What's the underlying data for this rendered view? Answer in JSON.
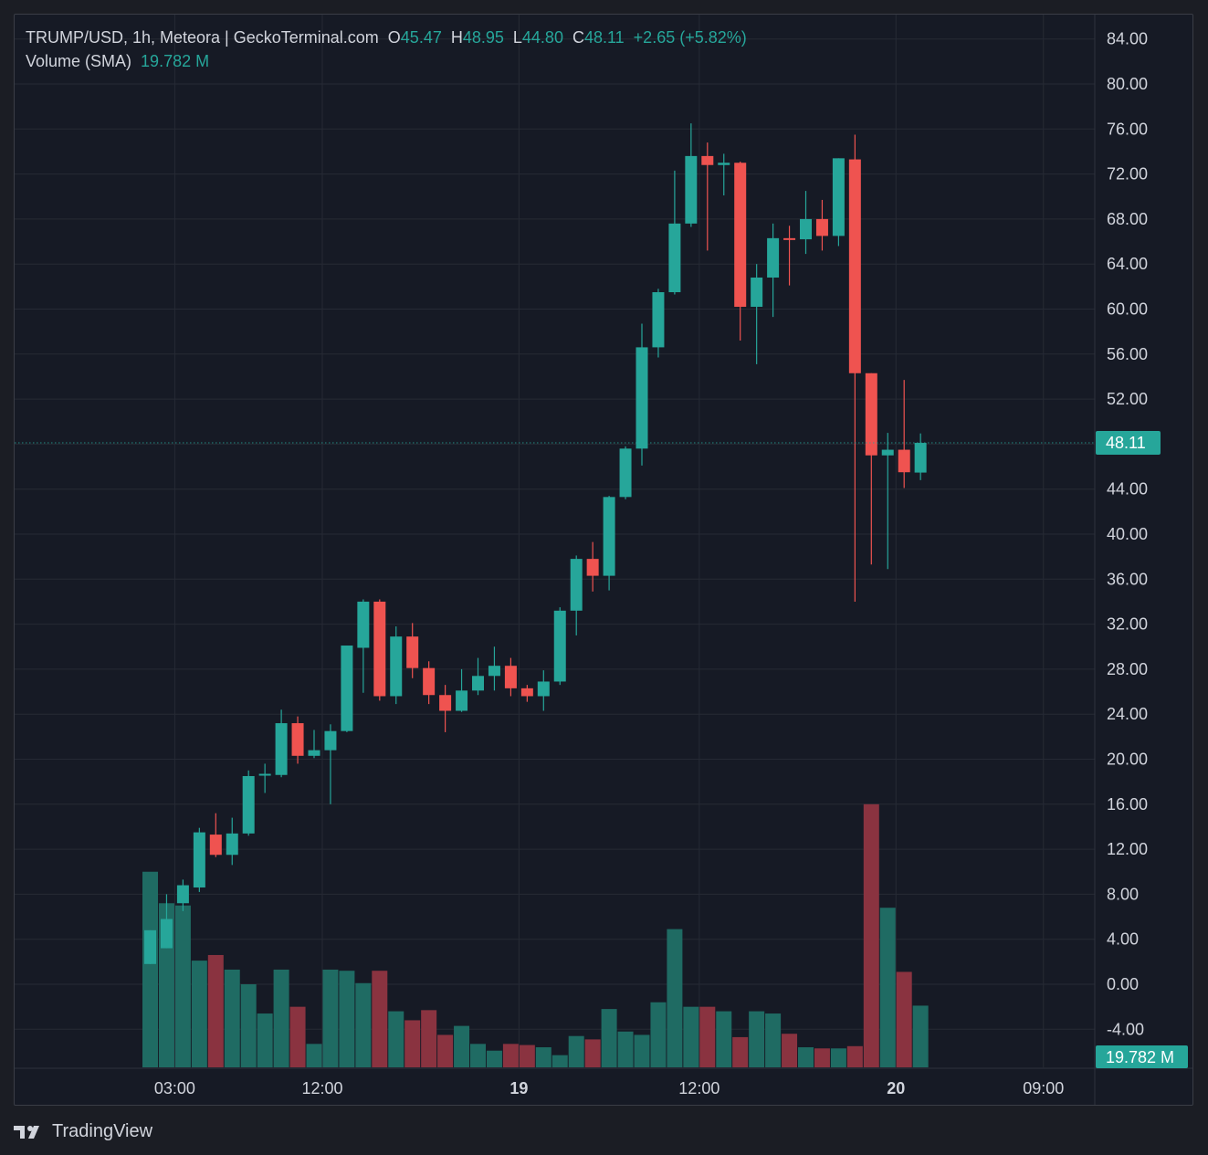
{
  "legend": {
    "symbol": "TRUMP/USD, 1h, Meteora | GeckoTerminal.com",
    "o_label": "O",
    "o_value": "45.47",
    "h_label": "H",
    "h_value": "48.95",
    "l_label": "L",
    "l_value": "44.80",
    "c_label": "C",
    "c_value": "48.11",
    "change": "+2.65 (+5.82%)",
    "volume_label": "Volume (SMA)",
    "volume_value": "19.782 M"
  },
  "price_badge": "48.11",
  "volume_badge": "19.782 M",
  "brand": "TradingView",
  "colors": {
    "up": "#26a69a",
    "down": "#ef5350",
    "vol_up": "#1f6b63",
    "vol_down": "#8a3340",
    "background": "#161a25",
    "grid": "#262a35"
  },
  "chart_data": {
    "type": "candlestick",
    "interval": "1h",
    "yaxis_ticks": [
      "84.00",
      "80.00",
      "76.00",
      "72.00",
      "68.00",
      "64.00",
      "60.00",
      "56.00",
      "52.00",
      "48.00",
      "44.00",
      "40.00",
      "36.00",
      "32.00",
      "28.00",
      "24.00",
      "20.00",
      "16.00",
      "12.00",
      "8.00",
      "4.00",
      "0.00",
      "-4.00"
    ],
    "ylim": [
      -6.5,
      86
    ],
    "xaxis_ticks": [
      {
        "label": "03:00",
        "index": 1.5,
        "bold": false
      },
      {
        "label": "12:00",
        "index": 10.5,
        "bold": false
      },
      {
        "label": "19",
        "index": 22.5,
        "bold": true
      },
      {
        "label": "12:00",
        "index": 33.5,
        "bold": false
      },
      {
        "label": "20",
        "index": 45.5,
        "bold": true
      },
      {
        "label": "09:00",
        "index": 54.5,
        "bold": false
      }
    ],
    "series": [
      {
        "name": "price",
        "ohlc": [
          [
            1.8,
            4.8,
            1.8,
            4.8
          ],
          [
            3.2,
            8.0,
            3.2,
            5.8
          ],
          [
            7.2,
            9.3,
            6.5,
            8.8
          ],
          [
            8.6,
            13.9,
            8.2,
            13.5
          ],
          [
            13.3,
            15.2,
            11.3,
            11.5
          ],
          [
            11.5,
            14.8,
            10.6,
            13.4
          ],
          [
            13.4,
            19.0,
            13.2,
            18.5
          ],
          [
            18.6,
            19.6,
            17.0,
            18.7
          ],
          [
            18.6,
            24.4,
            18.4,
            23.2
          ],
          [
            23.2,
            23.8,
            19.6,
            20.3
          ],
          [
            20.3,
            22.6,
            20.1,
            20.8
          ],
          [
            20.8,
            23.1,
            16.0,
            22.5
          ],
          [
            22.5,
            30.1,
            22.4,
            30.1
          ],
          [
            29.9,
            34.2,
            25.9,
            34.0
          ],
          [
            34.0,
            34.2,
            25.2,
            25.6
          ],
          [
            25.6,
            31.8,
            24.9,
            30.9
          ],
          [
            30.9,
            32.1,
            27.2,
            28.1
          ],
          [
            28.1,
            28.7,
            24.9,
            25.7
          ],
          [
            25.7,
            26.6,
            22.4,
            24.3
          ],
          [
            24.3,
            28.0,
            24.2,
            26.1
          ],
          [
            26.1,
            29.0,
            25.7,
            27.4
          ],
          [
            27.4,
            30.0,
            26.1,
            28.3
          ],
          [
            28.3,
            29.0,
            25.6,
            26.3
          ],
          [
            26.3,
            26.6,
            25.1,
            25.6
          ],
          [
            25.6,
            27.9,
            24.3,
            26.9
          ],
          [
            26.9,
            33.5,
            26.6,
            33.2
          ],
          [
            33.2,
            38.1,
            31.0,
            37.8
          ],
          [
            37.8,
            39.3,
            34.9,
            36.3
          ],
          [
            36.3,
            43.4,
            35.0,
            43.3
          ],
          [
            43.3,
            47.8,
            43.1,
            47.6
          ],
          [
            47.6,
            58.7,
            46.1,
            56.6
          ],
          [
            56.6,
            61.8,
            55.7,
            61.5
          ],
          [
            61.5,
            72.3,
            61.3,
            67.6
          ],
          [
            67.6,
            76.5,
            67.3,
            73.6
          ],
          [
            73.6,
            74.8,
            65.2,
            72.8
          ],
          [
            72.8,
            73.8,
            70.1,
            73.0
          ],
          [
            73.0,
            73.1,
            57.2,
            60.2
          ],
          [
            60.2,
            64.0,
            55.1,
            62.8
          ],
          [
            62.8,
            67.6,
            59.3,
            66.3
          ],
          [
            66.3,
            67.4,
            62.1,
            66.2
          ],
          [
            66.2,
            70.5,
            64.9,
            68.0
          ],
          [
            68.0,
            69.7,
            65.2,
            66.5
          ],
          [
            66.5,
            73.4,
            65.6,
            73.4
          ],
          [
            73.3,
            75.5,
            34.0,
            54.3
          ],
          [
            54.3,
            54.3,
            37.3,
            47.0
          ],
          [
            47.0,
            49.0,
            36.9,
            47.5
          ],
          [
            47.5,
            53.7,
            44.1,
            45.5
          ],
          [
            45.47,
            48.95,
            44.8,
            48.11
          ]
        ]
      },
      {
        "name": "Volume (SMA)",
        "values": [
          10.0,
          7.2,
          7.0,
          2.1,
          2.6,
          1.3,
          0.0,
          -2.6,
          1.3,
          -2.0,
          -5.3,
          1.3,
          1.2,
          0.1,
          1.2,
          -2.4,
          -3.2,
          -2.3,
          -4.5,
          -3.7,
          -5.3,
          -5.9,
          -5.3,
          -5.4,
          -5.6,
          -6.3,
          -4.6,
          -4.9,
          -2.2,
          -4.2,
          -4.5,
          -1.6,
          4.9,
          -2.0,
          -2.0,
          -2.4,
          -4.7,
          -2.4,
          -2.6,
          -4.4,
          -5.6,
          -5.7,
          -5.7,
          -5.5,
          16.0,
          6.8,
          1.1,
          -1.9
        ]
      }
    ],
    "last_price": 48.11
  }
}
